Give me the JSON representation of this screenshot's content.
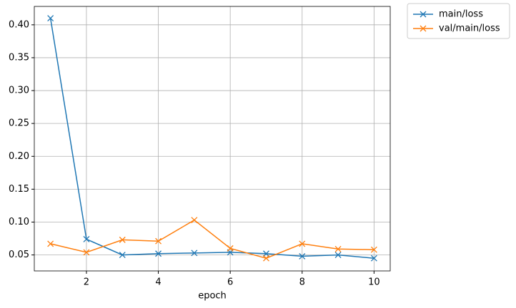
{
  "chart_data": {
    "type": "line",
    "xlabel": "epoch",
    "x": [
      1,
      2,
      3,
      4,
      5,
      6,
      7,
      8,
      9,
      10
    ],
    "series": [
      {
        "name": "main/loss",
        "color": "#1f77b4",
        "values": [
          0.41,
          0.074,
          0.05,
          0.052,
          0.053,
          0.054,
          0.052,
          0.048,
          0.05,
          0.045
        ]
      },
      {
        "name": "val/main/loss",
        "color": "#ff7f0e",
        "values": [
          0.067,
          0.054,
          0.073,
          0.071,
          0.103,
          0.06,
          0.045,
          0.067,
          0.059,
          0.058
        ]
      }
    ],
    "xlim": [
      0.55,
      10.45
    ],
    "xticks": [
      2,
      4,
      6,
      8,
      10
    ],
    "ylim": [
      0.0257,
      0.428
    ],
    "yticks": [
      0.05,
      {
        "value": 0.1,
        "label": "0.10"
      },
      0.15,
      {
        "value": 0.2,
        "label": "0.20"
      },
      0.25,
      {
        "value": 0.3,
        "label": "0.30"
      },
      0.35,
      {
        "value": 0.4,
        "label": "0.40"
      }
    ],
    "grid": true,
    "marker": "x",
    "legend": "outside-upper-right"
  }
}
